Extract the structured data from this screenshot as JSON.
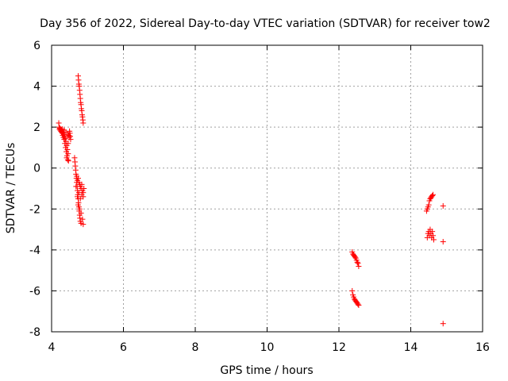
{
  "chart_data": {
    "type": "scatter",
    "title": "Day 356 of 2022, Sidereal Day-to-day VTEC variation (SDTVAR) for receiver tow2",
    "xlabel": "GPS time / hours",
    "ylabel": "SDTVAR / TECUs",
    "xlim": [
      4,
      16
    ],
    "ylim": [
      -8,
      6
    ],
    "xticks": [
      4,
      6,
      8,
      10,
      12,
      14,
      16
    ],
    "yticks": [
      -8,
      -6,
      -4,
      -2,
      0,
      2,
      4,
      6
    ],
    "grid": true,
    "marker": "+",
    "marker_color": "#ff0000",
    "series": [
      {
        "name": "SDTVAR",
        "points": [
          [
            4.2,
            2.2
          ],
          [
            4.21,
            2.0
          ],
          [
            4.22,
            1.9
          ],
          [
            4.23,
            1.95
          ],
          [
            4.24,
            1.85
          ],
          [
            4.25,
            1.9
          ],
          [
            4.26,
            1.8
          ],
          [
            4.27,
            1.85
          ],
          [
            4.28,
            1.75
          ],
          [
            4.29,
            1.8
          ],
          [
            4.3,
            1.7
          ],
          [
            4.31,
            1.6
          ],
          [
            4.32,
            1.75
          ],
          [
            4.33,
            1.5
          ],
          [
            4.34,
            1.65
          ],
          [
            4.35,
            1.4
          ],
          [
            4.36,
            1.55
          ],
          [
            4.37,
            1.2
          ],
          [
            4.38,
            1.45
          ],
          [
            4.39,
            1.0
          ],
          [
            4.4,
            1.3
          ],
          [
            4.41,
            0.8
          ],
          [
            4.42,
            1.1
          ],
          [
            4.43,
            0.6
          ],
          [
            4.44,
            0.9
          ],
          [
            4.45,
            0.4
          ],
          [
            4.46,
            0.7
          ],
          [
            4.47,
            0.35
          ],
          [
            4.48,
            1.6
          ],
          [
            4.49,
            1.5
          ],
          [
            4.5,
            1.8
          ],
          [
            4.51,
            1.7
          ],
          [
            4.52,
            1.55
          ],
          [
            4.53,
            1.4
          ],
          [
            4.35,
            1.85
          ],
          [
            4.4,
            1.75
          ],
          [
            4.45,
            1.65
          ],
          [
            4.3,
            1.9
          ],
          [
            4.42,
            0.5
          ],
          [
            4.46,
            1.2
          ],
          [
            4.64,
            0.5
          ],
          [
            4.65,
            0.3
          ],
          [
            4.66,
            0.1
          ],
          [
            4.67,
            -0.1
          ],
          [
            4.68,
            -0.3
          ],
          [
            4.69,
            -0.5
          ],
          [
            4.7,
            -0.7
          ],
          [
            4.71,
            -0.9
          ],
          [
            4.72,
            -1.1
          ],
          [
            4.73,
            -1.3
          ],
          [
            4.74,
            -1.5
          ],
          [
            4.75,
            -1.7
          ],
          [
            4.76,
            -1.9
          ],
          [
            4.77,
            -2.1
          ],
          [
            4.78,
            -2.3
          ],
          [
            4.79,
            -2.45
          ],
          [
            4.8,
            -2.6
          ],
          [
            4.82,
            -2.7
          ],
          [
            4.68,
            -0.9
          ],
          [
            4.7,
            -0.4
          ],
          [
            4.72,
            -0.6
          ],
          [
            4.74,
            -0.5
          ],
          [
            4.76,
            -0.7
          ],
          [
            4.78,
            -0.8
          ],
          [
            4.8,
            -0.9
          ],
          [
            4.82,
            -1.0
          ],
          [
            4.84,
            -0.8
          ],
          [
            4.86,
            -1.1
          ],
          [
            4.88,
            -1.2
          ],
          [
            4.9,
            -1.0
          ],
          [
            4.72,
            -1.4
          ],
          [
            4.76,
            -1.2
          ],
          [
            4.8,
            -1.5
          ],
          [
            4.84,
            -1.3
          ],
          [
            4.88,
            -1.4
          ],
          [
            4.74,
            -1.8
          ],
          [
            4.78,
            -2.0
          ],
          [
            4.82,
            -2.2
          ],
          [
            4.86,
            -2.5
          ],
          [
            4.88,
            -2.75
          ],
          [
            4.74,
            4.5
          ],
          [
            4.75,
            4.3
          ],
          [
            4.76,
            4.1
          ],
          [
            4.77,
            4.0
          ],
          [
            4.78,
            3.8
          ],
          [
            4.79,
            3.6
          ],
          [
            4.8,
            3.4
          ],
          [
            4.81,
            3.2
          ],
          [
            4.82,
            3.1
          ],
          [
            4.83,
            2.9
          ],
          [
            4.84,
            2.8
          ],
          [
            4.85,
            2.6
          ],
          [
            4.86,
            2.5
          ],
          [
            4.87,
            2.35
          ],
          [
            4.88,
            2.2
          ],
          [
            12.37,
            -4.1
          ],
          [
            12.39,
            -4.2
          ],
          [
            12.41,
            -4.25
          ],
          [
            12.43,
            -4.3
          ],
          [
            12.45,
            -4.35
          ],
          [
            12.47,
            -4.4
          ],
          [
            12.49,
            -4.5
          ],
          [
            12.51,
            -4.6
          ],
          [
            12.53,
            -4.65
          ],
          [
            12.55,
            -4.8
          ],
          [
            12.37,
            -6.0
          ],
          [
            12.39,
            -6.2
          ],
          [
            12.41,
            -6.3
          ],
          [
            12.43,
            -6.4
          ],
          [
            12.45,
            -6.45
          ],
          [
            12.47,
            -6.5
          ],
          [
            12.49,
            -6.55
          ],
          [
            12.51,
            -6.6
          ],
          [
            12.53,
            -6.65
          ],
          [
            12.55,
            -6.7
          ],
          [
            14.44,
            -2.1
          ],
          [
            14.46,
            -2.0
          ],
          [
            14.48,
            -1.9
          ],
          [
            14.5,
            -1.8
          ],
          [
            14.52,
            -1.6
          ],
          [
            14.54,
            -1.5
          ],
          [
            14.56,
            -1.45
          ],
          [
            14.58,
            -1.4
          ],
          [
            14.6,
            -1.35
          ],
          [
            14.62,
            -1.3
          ],
          [
            14.46,
            -3.4
          ],
          [
            14.48,
            -3.2
          ],
          [
            14.5,
            -3.1
          ],
          [
            14.52,
            -3.3
          ],
          [
            14.54,
            -3.0
          ],
          [
            14.56,
            -3.2
          ],
          [
            14.58,
            -3.4
          ],
          [
            14.6,
            -3.1
          ],
          [
            14.62,
            -3.3
          ],
          [
            14.64,
            -3.5
          ],
          [
            14.9,
            -1.85
          ],
          [
            14.9,
            -3.6
          ],
          [
            14.9,
            -7.6
          ]
        ]
      }
    ]
  }
}
